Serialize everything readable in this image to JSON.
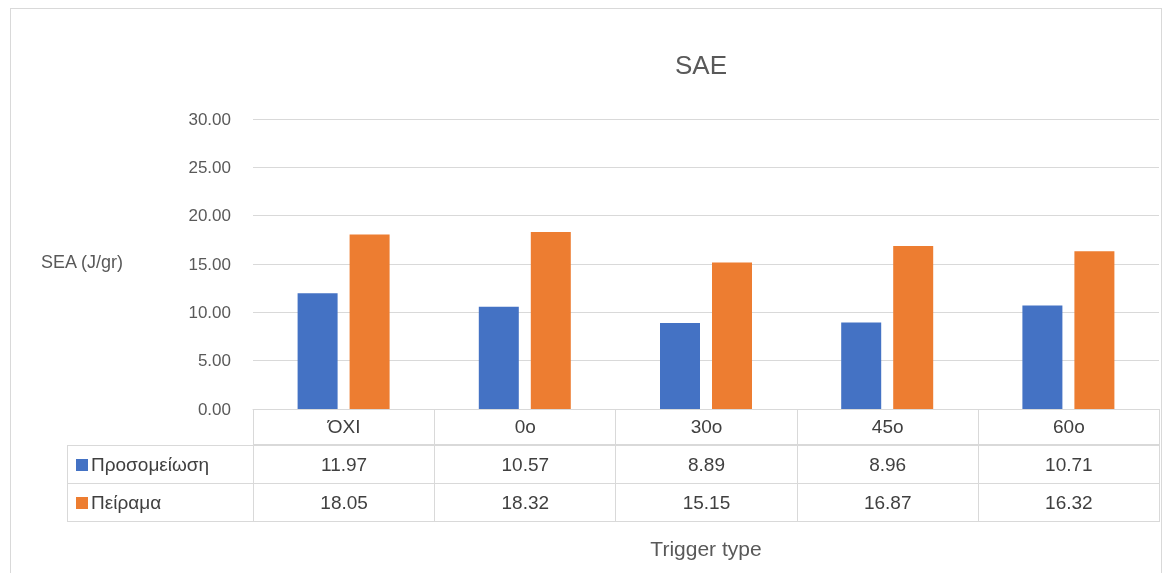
{
  "chart_data": {
    "type": "bar",
    "title": "SAE",
    "xlabel": "Trigger type",
    "ylabel": "SEA (J/gr)",
    "categories": [
      "ΌΧΙ",
      "0o",
      "30o",
      "45o",
      "60o"
    ],
    "series": [
      {
        "name": "Προσομείωση",
        "color": "#4472c4",
        "values": [
          11.97,
          10.57,
          8.89,
          8.96,
          10.71
        ]
      },
      {
        "name": "Πείραμα",
        "color": "#ed7d31",
        "values": [
          18.05,
          18.32,
          15.15,
          16.87,
          16.32
        ]
      }
    ],
    "ylim": [
      0,
      30
    ],
    "yticks": [
      {
        "value": 0,
        "label": "0.00"
      },
      {
        "value": 5,
        "label": "5.00"
      },
      {
        "value": 10,
        "label": "10.00"
      },
      {
        "value": 15,
        "label": "15.00"
      },
      {
        "value": 20,
        "label": "20.00"
      },
      {
        "value": 25,
        "label": "25.00"
      },
      {
        "value": 30,
        "label": "30.00"
      }
    ],
    "grid": "y",
    "data_labels": true,
    "legend": "bottom"
  }
}
